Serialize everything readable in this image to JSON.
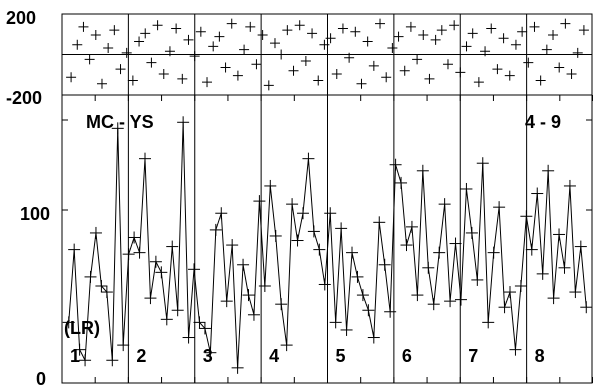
{
  "chart_data": {
    "type": "scatter",
    "title": "",
    "grid": false,
    "panels": {
      "count": 8,
      "labels": [
        "1",
        "2",
        "3",
        "4",
        "5",
        "6",
        "7",
        "8"
      ]
    },
    "top_axis": {
      "ylim": [
        -200,
        200
      ],
      "tick_labels": [
        "200",
        "-200"
      ],
      "series": {
        "name": "",
        "values": [
          -140,
          60,
          170,
          -30,
          120,
          -180,
          40,
          150,
          -90,
          10,
          -160,
          80,
          130,
          -50,
          180,
          -120,
          20,
          160,
          -150,
          90,
          -10,
          140,
          -170,
          50,
          110,
          -80,
          190,
          -130,
          30,
          170,
          -60,
          120,
          -190,
          70,
          0,
          150,
          -100,
          180,
          -40,
          130,
          -160,
          60,
          100,
          -120,
          160,
          -20,
          140,
          -180,
          80,
          -70,
          190,
          -140,
          40,
          110,
          -100,
          170,
          -30,
          120,
          -150,
          90,
          150,
          -60,
          180,
          -110,
          50,
          130,
          -170,
          20,
          160,
          -90,
          100,
          -130,
          60,
          140,
          -50,
          170,
          -160,
          30,
          120,
          -80,
          190,
          -120,
          10,
          150
        ]
      }
    },
    "bottom_axis": {
      "ylim": [
        0,
        190
      ],
      "tick_labels": [
        "100",
        "0"
      ],
      "series": {
        "name": "",
        "values": [
          40,
          88,
          22,
          15,
          70,
          99,
          64,
          60,
          15,
          168,
          25,
          85,
          96,
          86,
          148,
          56,
          80,
          73,
          42,
          90,
          48,
          172,
          30,
          75,
          40,
          36,
          20,
          101,
          112,
          54,
          91,
          10,
          78,
          58,
          45,
          120,
          64,
          130,
          97,
          52,
          25,
          118,
          94,
          112,
          148,
          100,
          88,
          65,
          112,
          40,
          102,
          35,
          86,
          70,
          58,
          48,
          30,
          106,
          78,
          47,
          144,
          132,
          91,
          103,
          58,
          140,
          76,
          52,
          86,
          118,
          54,
          92,
          55,
          128,
          99,
          68,
          145,
          40,
          86,
          116,
          50,
          60,
          22,
          64,
          110,
          88,
          125,
          72,
          140,
          56,
          98,
          76,
          130,
          60,
          90,
          50
        ]
      }
    },
    "annotations": [
      "MC - YS",
      "4 - 9",
      "(LR)"
    ]
  }
}
